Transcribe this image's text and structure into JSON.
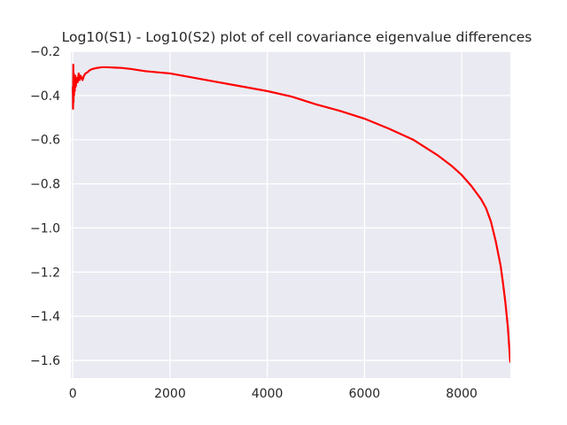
{
  "chart_data": {
    "type": "line",
    "title": "Log10(S1) - Log10(S2) plot of cell covariance eigenvalue differences",
    "xlabel": "",
    "ylabel": "",
    "xlim": [
      -40,
      9000
    ],
    "ylim": [
      -1.68,
      -0.2
    ],
    "xticks": [
      0,
      2000,
      4000,
      6000,
      8000
    ],
    "xtick_labels": [
      "0",
      "2000",
      "4000",
      "6000",
      "8000"
    ],
    "yticks": [
      -0.2,
      -0.4,
      -0.6,
      -0.8,
      -1.0,
      -1.2,
      -1.4,
      -1.6
    ],
    "ytick_labels": [
      "−0.2",
      "−0.4",
      "−0.6",
      "−0.8",
      "−1.0",
      "−1.2",
      "−1.4",
      "−1.6"
    ],
    "grid": true,
    "style": "seaborn-darkgrid",
    "series": [
      {
        "color": "#ff0000",
        "x": [
          0,
          5,
          10,
          15,
          20,
          25,
          30,
          40,
          50,
          60,
          80,
          100,
          120,
          140,
          160,
          180,
          200,
          230,
          260,
          300,
          350,
          400,
          500,
          600,
          700,
          800,
          1000,
          1200,
          1500,
          2000,
          2500,
          3000,
          3500,
          4000,
          4500,
          5000,
          5500,
          6000,
          6500,
          7000,
          7500,
          7800,
          8000,
          8200,
          8400,
          8500,
          8600,
          8700,
          8800,
          8850,
          8900,
          8950,
          9000
        ],
        "y": [
          -0.36,
          -0.46,
          -0.26,
          -0.43,
          -0.3,
          -0.4,
          -0.33,
          -0.38,
          -0.31,
          -0.36,
          -0.32,
          -0.34,
          -0.3,
          -0.33,
          -0.31,
          -0.32,
          -0.33,
          -0.31,
          -0.3,
          -0.295,
          -0.285,
          -0.28,
          -0.275,
          -0.272,
          -0.272,
          -0.273,
          -0.275,
          -0.28,
          -0.29,
          -0.3,
          -0.32,
          -0.34,
          -0.36,
          -0.38,
          -0.405,
          -0.44,
          -0.47,
          -0.505,
          -0.55,
          -0.6,
          -0.67,
          -0.72,
          -0.76,
          -0.81,
          -0.87,
          -0.91,
          -0.97,
          -1.06,
          -1.17,
          -1.25,
          -1.34,
          -1.45,
          -1.61
        ]
      }
    ]
  }
}
